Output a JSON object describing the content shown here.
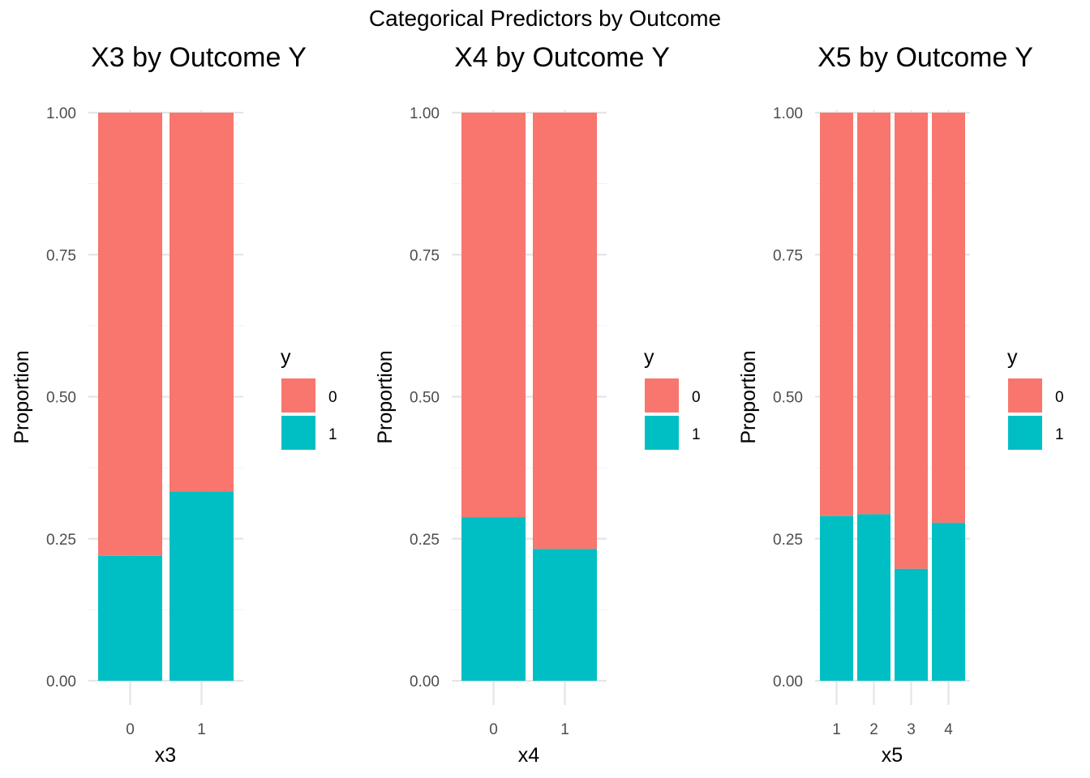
{
  "title": "Categorical Predictors by Outcome",
  "colors": {
    "y0": "#F8766D",
    "y1": "#00BFC4"
  },
  "chart_data": [
    {
      "type": "bar",
      "stacked": true,
      "title": "X3 by Outcome Y",
      "xlabel": "x3",
      "ylabel": "Proportion",
      "ylim": [
        0,
        1
      ],
      "yticks": [
        "0.00",
        "0.25",
        "0.50",
        "0.75",
        "1.00"
      ],
      "categories": [
        "0",
        "1"
      ],
      "legend_title": "y",
      "legend_position": "right",
      "series": [
        {
          "name": "0",
          "values": [
            0.78,
            0.667
          ]
        },
        {
          "name": "1",
          "values": [
            0.22,
            0.333
          ]
        }
      ]
    },
    {
      "type": "bar",
      "stacked": true,
      "title": "X4 by Outcome Y",
      "xlabel": "x4",
      "ylabel": "Proportion",
      "ylim": [
        0,
        1
      ],
      "yticks": [
        "0.00",
        "0.25",
        "0.50",
        "0.75",
        "1.00"
      ],
      "categories": [
        "0",
        "1"
      ],
      "legend_title": "y",
      "legend_position": "right",
      "series": [
        {
          "name": "0",
          "values": [
            0.712,
            0.768
          ]
        },
        {
          "name": "1",
          "values": [
            0.288,
            0.232
          ]
        }
      ]
    },
    {
      "type": "bar",
      "stacked": true,
      "title": "X5 by Outcome Y",
      "xlabel": "x5",
      "ylabel": "Proportion",
      "ylim": [
        0,
        1
      ],
      "yticks": [
        "0.00",
        "0.25",
        "0.50",
        "0.75",
        "1.00"
      ],
      "categories": [
        "1",
        "2",
        "3",
        "4"
      ],
      "legend_title": "y",
      "legend_position": "right",
      "series": [
        {
          "name": "0",
          "values": [
            0.71,
            0.707,
            0.803,
            0.722
          ]
        },
        {
          "name": "1",
          "values": [
            0.29,
            0.293,
            0.197,
            0.278
          ]
        }
      ]
    }
  ]
}
